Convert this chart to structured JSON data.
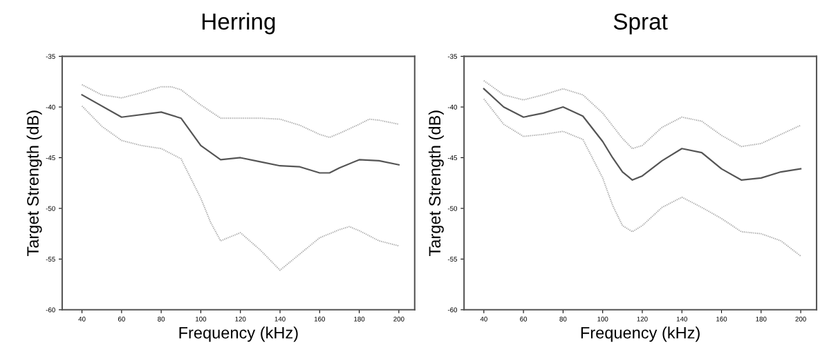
{
  "chart_data": [
    {
      "type": "line",
      "title": "Herring",
      "xlabel": "Frequency (kHz)",
      "ylabel": "Target Strength (dB)",
      "xlim": [
        30,
        208
      ],
      "ylim": [
        -60,
        -35
      ],
      "xticks": [
        40,
        60,
        80,
        100,
        120,
        140,
        160,
        180,
        200
      ],
      "yticks": [
        -60,
        -55,
        -50,
        -45,
        -40,
        -35
      ],
      "grid": false,
      "legend": false,
      "series": [
        {
          "color": "#aaaaaa",
          "line_style": "dotted",
          "x": [
            40,
            50,
            60,
            70,
            80,
            85,
            90,
            100,
            110,
            120,
            130,
            140,
            150,
            160,
            165,
            170,
            180,
            185,
            190,
            200
          ],
          "values": [
            -37.8,
            -38.8,
            -39.1,
            -38.6,
            -38.0,
            -38.0,
            -38.3,
            -39.8,
            -41.1,
            -41.1,
            -41.1,
            -41.2,
            -41.8,
            -42.7,
            -43.0,
            -42.6,
            -41.7,
            -41.2,
            -41.3,
            -41.7
          ]
        },
        {
          "color": "#555555",
          "line_style": "solid",
          "x": [
            40,
            60,
            80,
            90,
            100,
            110,
            120,
            130,
            140,
            150,
            160,
            165,
            170,
            180,
            190,
            200
          ],
          "values": [
            -38.8,
            -41.0,
            -40.5,
            -41.1,
            -43.8,
            -45.2,
            -45.0,
            -45.4,
            -45.8,
            -45.9,
            -46.5,
            -46.5,
            -46.0,
            -45.2,
            -45.3,
            -45.7
          ]
        },
        {
          "color": "#aaaaaa",
          "line_style": "dotted",
          "x": [
            40,
            50,
            60,
            70,
            80,
            90,
            100,
            105,
            110,
            120,
            130,
            140,
            150,
            160,
            170,
            175,
            180,
            190,
            200
          ],
          "values": [
            -39.9,
            -41.9,
            -43.3,
            -43.8,
            -44.1,
            -45.1,
            -49.0,
            -51.4,
            -53.2,
            -52.4,
            -54.1,
            -56.1,
            -54.5,
            -52.9,
            -52.1,
            -51.8,
            -52.2,
            -53.2,
            -53.7
          ]
        }
      ]
    },
    {
      "type": "line",
      "title": "Sprat",
      "xlabel": "Frequency (kHz)",
      "ylabel": "Target Strength (dB)",
      "xlim": [
        30,
        208
      ],
      "ylim": [
        -60,
        -35
      ],
      "xticks": [
        40,
        60,
        80,
        100,
        120,
        140,
        160,
        180,
        200
      ],
      "yticks": [
        -60,
        -55,
        -50,
        -45,
        -40,
        -35
      ],
      "grid": false,
      "legend": false,
      "series": [
        {
          "color": "#aaaaaa",
          "line_style": "dotted",
          "x": [
            40,
            50,
            60,
            70,
            80,
            90,
            100,
            110,
            115,
            120,
            130,
            140,
            150,
            160,
            170,
            180,
            190,
            200
          ],
          "values": [
            -37.4,
            -38.8,
            -39.3,
            -38.8,
            -38.2,
            -38.8,
            -40.6,
            -43.1,
            -44.1,
            -43.8,
            -42.0,
            -41.0,
            -41.4,
            -42.8,
            -43.9,
            -43.6,
            -42.7,
            -41.8
          ]
        },
        {
          "color": "#555555",
          "line_style": "solid",
          "x": [
            40,
            50,
            60,
            70,
            80,
            90,
            100,
            105,
            110,
            115,
            120,
            130,
            140,
            150,
            160,
            170,
            180,
            190,
            200
          ],
          "values": [
            -38.2,
            -40.0,
            -41.0,
            -40.6,
            -40.0,
            -40.9,
            -43.4,
            -45.0,
            -46.4,
            -47.2,
            -46.8,
            -45.3,
            -44.1,
            -44.5,
            -46.1,
            -47.2,
            -47.0,
            -46.4,
            -46.1
          ]
        },
        {
          "color": "#aaaaaa",
          "line_style": "dotted",
          "x": [
            40,
            50,
            60,
            70,
            80,
            90,
            100,
            105,
            110,
            115,
            120,
            130,
            140,
            150,
            160,
            170,
            180,
            190,
            200
          ],
          "values": [
            -39.2,
            -41.7,
            -42.9,
            -42.7,
            -42.4,
            -43.2,
            -47.0,
            -49.7,
            -51.7,
            -52.3,
            -51.7,
            -49.9,
            -48.9,
            -49.9,
            -51.0,
            -52.3,
            -52.5,
            -53.2,
            -54.7
          ]
        }
      ]
    }
  ]
}
